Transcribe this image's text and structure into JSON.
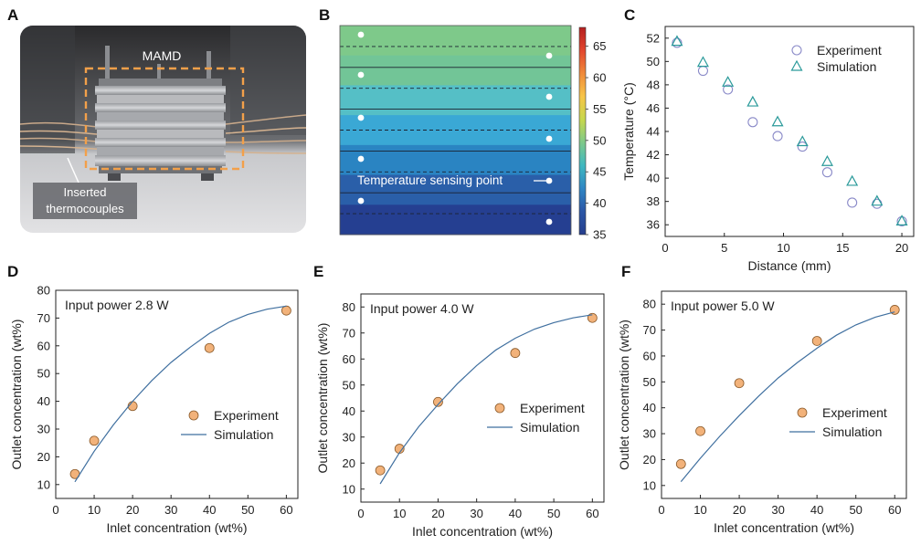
{
  "panels": {
    "a": "A",
    "b": "B",
    "c": "C",
    "d": "D",
    "e": "E",
    "f": "F"
  },
  "photo": {
    "device_label": "MAMD",
    "thermocouple_label_line1": "Inserted",
    "thermocouple_label_line2": "thermocouples"
  },
  "colormap": {
    "annotation": "Temperature sensing point",
    "ticks": [
      "65",
      "60",
      "55",
      "50",
      "45",
      "40",
      "35"
    ],
    "range": [
      35,
      68
    ],
    "colors_top_to_bottom": [
      "#7ec98a",
      "#72c597",
      "#55bfc6",
      "#3aa8d5",
      "#2a84c2",
      "#2a5fa9",
      "#253f91"
    ]
  },
  "colors": {
    "experiment_marker": "#f2b27a",
    "experiment_stroke": "#8a5a2a",
    "simulation_line": "#3f6f9f",
    "circle_marker": "#8a8ac8",
    "triangle_marker": "#2a9a9a",
    "photo_box": "#f2a04a"
  },
  "chart_data": [
    {
      "panel": "C",
      "type": "scatter",
      "xlabel": "Distance (mm)",
      "ylabel": "Temperature (°C)",
      "xlim": [
        0,
        21
      ],
      "ylim": [
        35,
        53
      ],
      "xticks": [
        0,
        5,
        10,
        15,
        20
      ],
      "yticks": [
        36,
        38,
        40,
        42,
        44,
        46,
        48,
        50,
        52
      ],
      "legend": "top-right",
      "series": [
        {
          "name": "Experiment",
          "marker": "circle",
          "x": [
            1.0,
            3.2,
            5.3,
            7.4,
            9.5,
            11.6,
            13.7,
            15.8,
            17.9,
            20.0
          ],
          "y": [
            51.6,
            49.2,
            47.6,
            44.8,
            43.6,
            42.7,
            40.5,
            37.9,
            37.8,
            36.3
          ]
        },
        {
          "name": "Simulation",
          "marker": "triangle",
          "x": [
            1.0,
            3.2,
            5.3,
            7.4,
            9.5,
            11.6,
            13.7,
            15.8,
            17.9,
            20.0
          ],
          "y": [
            51.7,
            49.9,
            48.2,
            46.5,
            44.8,
            43.1,
            41.4,
            39.7,
            38.0,
            36.3
          ]
        }
      ]
    },
    {
      "panel": "D",
      "type": "scatter",
      "annotation": "Input power 2.8 W",
      "xlabel": "Inlet concentration (wt%)",
      "ylabel": "Outlet concentration (wt%)",
      "xlim": [
        0,
        63
      ],
      "ylim": [
        5,
        80
      ],
      "xticks": [
        0,
        10,
        20,
        30,
        40,
        50,
        60
      ],
      "yticks": [
        10,
        20,
        30,
        40,
        50,
        60,
        70,
        80
      ],
      "legend": "middle-right",
      "series": [
        {
          "name": "Experiment",
          "marker": "circle",
          "x": [
            5,
            10,
            20,
            40,
            60
          ],
          "y": [
            13.8,
            25.8,
            38.3,
            59.2,
            72.7
          ]
        },
        {
          "name": "Simulation",
          "marker": "line",
          "x": [
            5,
            10,
            15,
            20,
            25,
            30,
            35,
            40,
            45,
            50,
            55,
            60
          ],
          "y": [
            11.0,
            22.0,
            31.5,
            40.0,
            47.5,
            54.0,
            59.5,
            64.5,
            68.5,
            71.3,
            73.2,
            74.3
          ]
        }
      ]
    },
    {
      "panel": "E",
      "type": "scatter",
      "annotation": "Input power 4.0 W",
      "xlabel": "Inlet concentration (wt%)",
      "ylabel": "Outlet concentration (wt%)",
      "xlim": [
        0,
        63
      ],
      "ylim": [
        5,
        85
      ],
      "xticks": [
        0,
        10,
        20,
        30,
        40,
        50,
        60
      ],
      "yticks": [
        10,
        20,
        30,
        40,
        50,
        60,
        70,
        80
      ],
      "legend": "middle-right",
      "series": [
        {
          "name": "Experiment",
          "marker": "circle",
          "x": [
            5,
            10,
            20,
            40,
            60
          ],
          "y": [
            17.2,
            25.5,
            43.5,
            62.3,
            75.8
          ]
        },
        {
          "name": "Simulation",
          "marker": "line",
          "x": [
            5,
            10,
            15,
            20,
            25,
            30,
            35,
            40,
            45,
            50,
            55,
            60
          ],
          "y": [
            12.0,
            24.0,
            34.0,
            42.5,
            50.5,
            57.5,
            63.5,
            68.0,
            71.5,
            74.0,
            75.8,
            77.0
          ]
        }
      ]
    },
    {
      "panel": "F",
      "type": "scatter",
      "annotation": "Input power 5.0 W",
      "xlabel": "Inlet concentration (wt%)",
      "ylabel": "Outlet concentration (wt%)",
      "xlim": [
        0,
        63
      ],
      "ylim": [
        5,
        85
      ],
      "xticks": [
        0,
        10,
        20,
        30,
        40,
        50,
        60
      ],
      "yticks": [
        10,
        20,
        30,
        40,
        50,
        60,
        70,
        80
      ],
      "legend": "middle-right",
      "series": [
        {
          "name": "Experiment",
          "marker": "circle",
          "x": [
            5,
            10,
            20,
            40,
            60
          ],
          "y": [
            18.3,
            31.0,
            49.5,
            65.8,
            77.8
          ]
        },
        {
          "name": "Simulation",
          "marker": "line",
          "x": [
            5,
            10,
            15,
            20,
            25,
            30,
            35,
            40,
            45,
            50,
            55,
            60
          ],
          "y": [
            11.5,
            20.5,
            29.0,
            37.0,
            44.5,
            51.5,
            57.5,
            63.0,
            68.0,
            72.0,
            75.0,
            77.0
          ]
        }
      ]
    }
  ]
}
